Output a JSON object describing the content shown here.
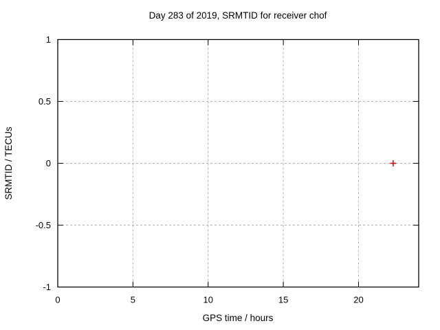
{
  "chart_data": {
    "type": "scatter",
    "title": "Day 283 of 2019, SRMTID for receiver chof",
    "xlabel": "GPS time / hours",
    "ylabel": "SRMTID / TECUs",
    "xlim": [
      0,
      24
    ],
    "ylim": [
      -1,
      1
    ],
    "grid": true,
    "legend": "none",
    "x_ticks": [
      {
        "value": 0,
        "label": "0"
      },
      {
        "value": 5,
        "label": "5"
      },
      {
        "value": 10,
        "label": "10"
      },
      {
        "value": 15,
        "label": "15"
      },
      {
        "value": 20,
        "label": "20"
      }
    ],
    "y_ticks": [
      {
        "value": -1,
        "label": "-1"
      },
      {
        "value": -0.5,
        "label": "-0.5"
      },
      {
        "value": 0,
        "label": "0"
      },
      {
        "value": 0.5,
        "label": "0.5"
      },
      {
        "value": 1,
        "label": "1"
      }
    ],
    "series": [
      {
        "name": "SRMTID",
        "marker": "plus",
        "color": "#dd0000",
        "points": [
          {
            "x": 22.3,
            "y": 0.0
          }
        ]
      }
    ],
    "colors": {
      "background": "#ffffff",
      "border": "#000000",
      "grid": "#b0b0b0",
      "text": "#000000",
      "marker": "#dd0000"
    }
  }
}
